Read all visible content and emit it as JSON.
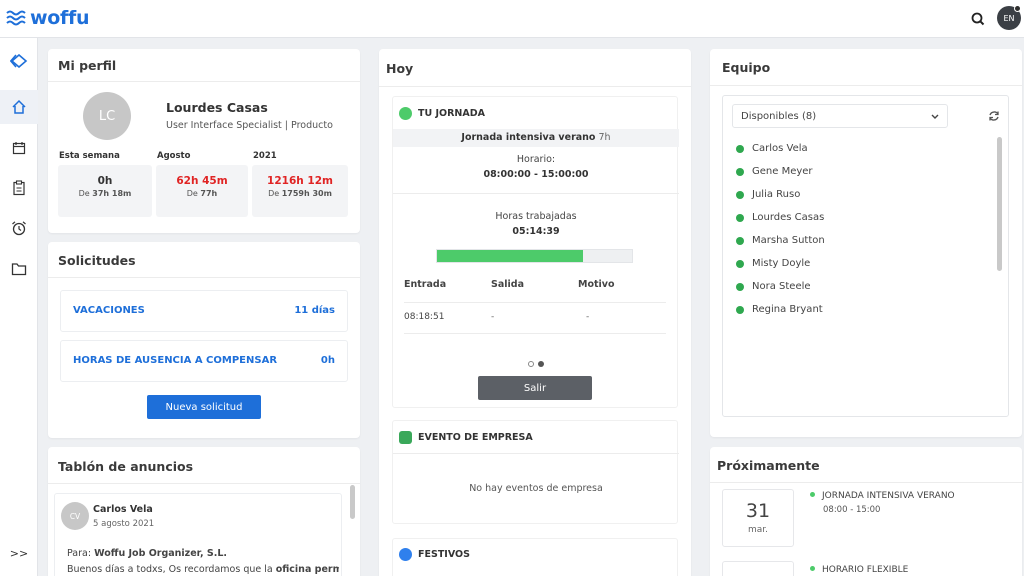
{
  "app": {
    "brand": "woffu",
    "avatar_initials": "EN"
  },
  "colors": {
    "accent": "#1e6fd9",
    "green": "#2fa84f",
    "red": "#e02424"
  },
  "sidebar": {
    "items": [
      {
        "icon": "diamond-nav-icon"
      },
      {
        "icon": "home-icon"
      },
      {
        "icon": "calendar-icon"
      },
      {
        "icon": "clipboard-icon"
      },
      {
        "icon": "alarm-clock-icon"
      },
      {
        "icon": "folder-icon"
      }
    ],
    "expand_label": ">>"
  },
  "profile": {
    "title": "Mi perfil",
    "initials": "LC",
    "name": "Lourdes Casas",
    "role": "User Interface Specialist | Producto",
    "stats": [
      {
        "label": "Esta semana",
        "value": "0h",
        "of_prefix": "De",
        "of_value": "37h 18m"
      },
      {
        "label": "Agosto",
        "value": "62h 45m",
        "of_prefix": "De",
        "of_value": "77h"
      },
      {
        "label": "2021",
        "value": "1216h 12m",
        "of_prefix": "De",
        "of_value": "1759h 30m"
      }
    ]
  },
  "solicitudes": {
    "title": "Solicitudes",
    "items": [
      {
        "label": "VACACIONES",
        "value": "11 días"
      },
      {
        "label": "HORAS DE AUSENCIA A COMPENSAR",
        "value": "0h"
      }
    ],
    "new_button": "Nueva solicitud"
  },
  "tablon": {
    "title": "Tablón de anuncios",
    "post": {
      "initials": "CV",
      "author": "Carlos Vela",
      "date": "5 agosto 2021",
      "to_prefix": "Para:",
      "to": "Woffu Job Organizer, S.L.",
      "body_start": "Buenos días a todxs, Os recordamos que la ",
      "body_bold": "oficina perma"
    }
  },
  "hoy": {
    "title": "Hoy",
    "jornada": {
      "heading": "TU JORNADA",
      "schedule_name": "Jornada intensiva verano",
      "schedule_hours": "7h",
      "horario_label": "Horario:",
      "horario_value": "08:00:00 - 15:00:00",
      "worked_label": "Horas trabajadas",
      "worked_value": "05:14:39",
      "progress": 0.75,
      "columns": [
        "Entrada",
        "Salida",
        "Motivo"
      ],
      "row": [
        "08:18:51",
        "-",
        "-"
      ],
      "exit_button": "Salir"
    },
    "evento": {
      "heading": "EVENTO DE EMPRESA",
      "empty": "No hay eventos de empresa"
    },
    "festivos": {
      "heading": "FESTIVOS"
    }
  },
  "equipo": {
    "title": "Equipo",
    "filter": "Disponibles (8)",
    "members": [
      "Carlos Vela",
      "Gene Meyer",
      "Julia Ruso",
      "Lourdes Casas",
      "Marsha Sutton",
      "Misty Doyle",
      "Nora Steele",
      "Regina Bryant"
    ]
  },
  "proximamente": {
    "title": "Próximamente",
    "events": [
      {
        "day": "31",
        "weekday": "mar.",
        "name": "JORNADA INTENSIVA VERANO",
        "hours": "08:00 - 15:00"
      },
      {
        "name": "HORARIO FLEXIBLE"
      }
    ]
  }
}
